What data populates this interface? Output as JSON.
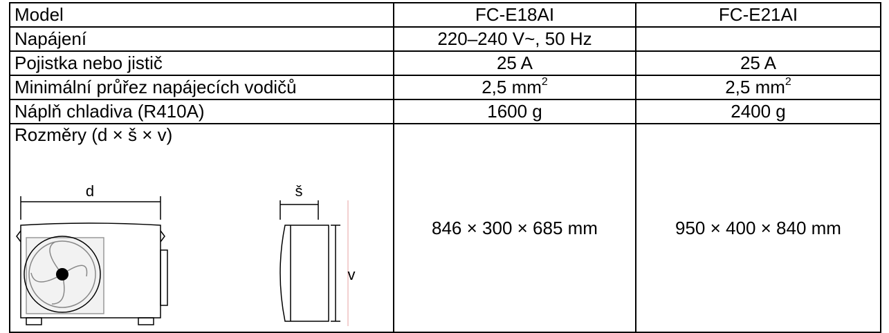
{
  "table": {
    "rows": [
      [
        "Model",
        "FC-E18AI",
        "FC-E21AI"
      ],
      [
        "Napájení",
        "220–240 V~, 50 Hz"
      ],
      [
        "Pojistka nebo jistič",
        "25 A",
        "25 A"
      ],
      [
        "Minimální průřez napájecích vodičů",
        {
          "text": "2,5 mm",
          "sup": "2"
        },
        {
          "text": "2,5 mm",
          "sup": "2"
        }
      ],
      [
        "Náplň chladiva (R410A)",
        "1600 g",
        "2400 g"
      ],
      [
        "Rozměry (d × š × v)",
        "846 × 300 × 685 mm",
        "950 × 400 × 840 mm"
      ]
    ]
  },
  "diagram": {
    "width_label": "d",
    "depth_label": "š",
    "height_label": "v"
  }
}
